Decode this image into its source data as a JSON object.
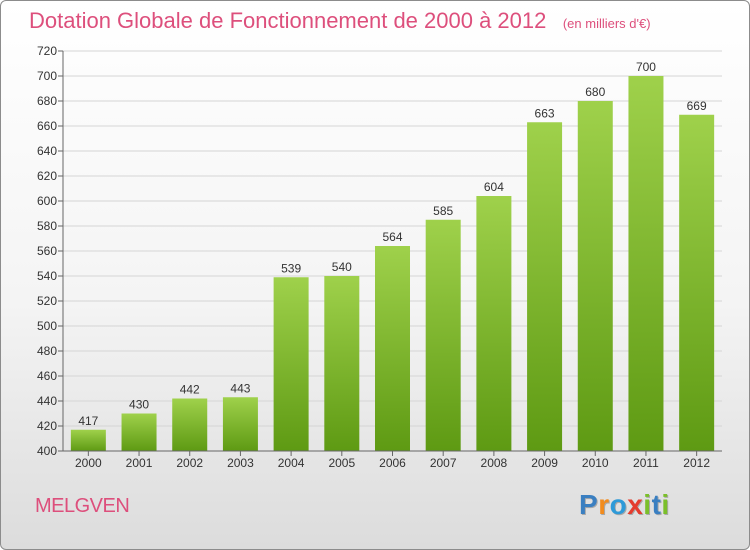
{
  "title": "Dotation Globale de Fonctionnement de 2000 à 2012",
  "subtitle": "(en milliers d'€)",
  "commune": "MELGVEN",
  "brand": {
    "text": "Proxiti",
    "letters": [
      "P",
      "r",
      "o",
      "x",
      "i",
      "t",
      "i"
    ],
    "letter_colors": [
      "#3a7fc1",
      "#f28c1e",
      "#2e9ad8",
      "#e53c2e",
      "#7bbf2a",
      "#3a7fc1",
      "#7bbf2a"
    ]
  },
  "colors": {
    "title": "#dd4f7c",
    "bar_top": "#9fd14b",
    "bar_bottom": "#5e9a13",
    "grid": "#d5d5d5",
    "axis": "#666666",
    "text": "#333333"
  },
  "chart_data": {
    "type": "bar",
    "categories": [
      "2000",
      "2001",
      "2002",
      "2003",
      "2004",
      "2005",
      "2006",
      "2007",
      "2008",
      "2009",
      "2010",
      "2011",
      "2012"
    ],
    "values": [
      417,
      430,
      442,
      443,
      539,
      540,
      564,
      585,
      604,
      663,
      680,
      700,
      669
    ],
    "ylim": [
      400,
      720
    ],
    "yticks": [
      400,
      420,
      440,
      460,
      480,
      500,
      520,
      540,
      560,
      580,
      600,
      620,
      640,
      660,
      680,
      700,
      720
    ],
    "grid": true,
    "data_labels": true
  }
}
